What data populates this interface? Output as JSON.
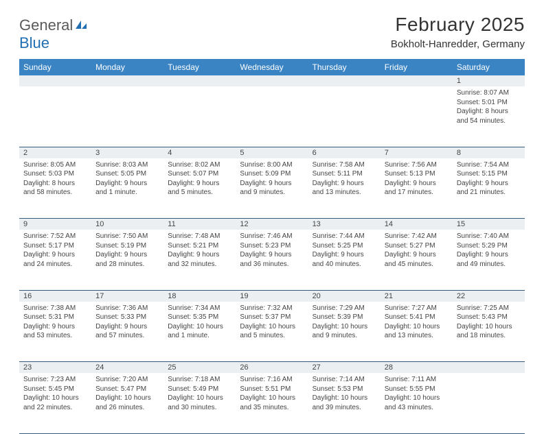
{
  "brand": {
    "part1": "General",
    "part2": "Blue"
  },
  "title": "February 2025",
  "location": "Bokholt-Hanredder, Germany",
  "colors": {
    "header_bg": "#3a84c4",
    "header_text": "#ffffff",
    "daynum_bg": "#eceff1",
    "row_border": "#335a7a",
    "text": "#444444",
    "logo_gray": "#5a5a5a",
    "logo_blue": "#1f6fb2"
  },
  "typography": {
    "title_fontsize": 28,
    "location_fontsize": 15,
    "header_fontsize": 12,
    "daynum_fontsize": 11,
    "content_fontsize": 10
  },
  "layout": {
    "columns": 7,
    "rows": 5
  },
  "day_headers": [
    "Sunday",
    "Monday",
    "Tuesday",
    "Wednesday",
    "Thursday",
    "Friday",
    "Saturday"
  ],
  "weeks": [
    [
      null,
      null,
      null,
      null,
      null,
      null,
      {
        "n": "1",
        "sunrise": "Sunrise: 8:07 AM",
        "sunset": "Sunset: 5:01 PM",
        "daylight": "Daylight: 8 hours and 54 minutes."
      }
    ],
    [
      {
        "n": "2",
        "sunrise": "Sunrise: 8:05 AM",
        "sunset": "Sunset: 5:03 PM",
        "daylight": "Daylight: 8 hours and 58 minutes."
      },
      {
        "n": "3",
        "sunrise": "Sunrise: 8:03 AM",
        "sunset": "Sunset: 5:05 PM",
        "daylight": "Daylight: 9 hours and 1 minute."
      },
      {
        "n": "4",
        "sunrise": "Sunrise: 8:02 AM",
        "sunset": "Sunset: 5:07 PM",
        "daylight": "Daylight: 9 hours and 5 minutes."
      },
      {
        "n": "5",
        "sunrise": "Sunrise: 8:00 AM",
        "sunset": "Sunset: 5:09 PM",
        "daylight": "Daylight: 9 hours and 9 minutes."
      },
      {
        "n": "6",
        "sunrise": "Sunrise: 7:58 AM",
        "sunset": "Sunset: 5:11 PM",
        "daylight": "Daylight: 9 hours and 13 minutes."
      },
      {
        "n": "7",
        "sunrise": "Sunrise: 7:56 AM",
        "sunset": "Sunset: 5:13 PM",
        "daylight": "Daylight: 9 hours and 17 minutes."
      },
      {
        "n": "8",
        "sunrise": "Sunrise: 7:54 AM",
        "sunset": "Sunset: 5:15 PM",
        "daylight": "Daylight: 9 hours and 21 minutes."
      }
    ],
    [
      {
        "n": "9",
        "sunrise": "Sunrise: 7:52 AM",
        "sunset": "Sunset: 5:17 PM",
        "daylight": "Daylight: 9 hours and 24 minutes."
      },
      {
        "n": "10",
        "sunrise": "Sunrise: 7:50 AM",
        "sunset": "Sunset: 5:19 PM",
        "daylight": "Daylight: 9 hours and 28 minutes."
      },
      {
        "n": "11",
        "sunrise": "Sunrise: 7:48 AM",
        "sunset": "Sunset: 5:21 PM",
        "daylight": "Daylight: 9 hours and 32 minutes."
      },
      {
        "n": "12",
        "sunrise": "Sunrise: 7:46 AM",
        "sunset": "Sunset: 5:23 PM",
        "daylight": "Daylight: 9 hours and 36 minutes."
      },
      {
        "n": "13",
        "sunrise": "Sunrise: 7:44 AM",
        "sunset": "Sunset: 5:25 PM",
        "daylight": "Daylight: 9 hours and 40 minutes."
      },
      {
        "n": "14",
        "sunrise": "Sunrise: 7:42 AM",
        "sunset": "Sunset: 5:27 PM",
        "daylight": "Daylight: 9 hours and 45 minutes."
      },
      {
        "n": "15",
        "sunrise": "Sunrise: 7:40 AM",
        "sunset": "Sunset: 5:29 PM",
        "daylight": "Daylight: 9 hours and 49 minutes."
      }
    ],
    [
      {
        "n": "16",
        "sunrise": "Sunrise: 7:38 AM",
        "sunset": "Sunset: 5:31 PM",
        "daylight": "Daylight: 9 hours and 53 minutes."
      },
      {
        "n": "17",
        "sunrise": "Sunrise: 7:36 AM",
        "sunset": "Sunset: 5:33 PM",
        "daylight": "Daylight: 9 hours and 57 minutes."
      },
      {
        "n": "18",
        "sunrise": "Sunrise: 7:34 AM",
        "sunset": "Sunset: 5:35 PM",
        "daylight": "Daylight: 10 hours and 1 minute."
      },
      {
        "n": "19",
        "sunrise": "Sunrise: 7:32 AM",
        "sunset": "Sunset: 5:37 PM",
        "daylight": "Daylight: 10 hours and 5 minutes."
      },
      {
        "n": "20",
        "sunrise": "Sunrise: 7:29 AM",
        "sunset": "Sunset: 5:39 PM",
        "daylight": "Daylight: 10 hours and 9 minutes."
      },
      {
        "n": "21",
        "sunrise": "Sunrise: 7:27 AM",
        "sunset": "Sunset: 5:41 PM",
        "daylight": "Daylight: 10 hours and 13 minutes."
      },
      {
        "n": "22",
        "sunrise": "Sunrise: 7:25 AM",
        "sunset": "Sunset: 5:43 PM",
        "daylight": "Daylight: 10 hours and 18 minutes."
      }
    ],
    [
      {
        "n": "23",
        "sunrise": "Sunrise: 7:23 AM",
        "sunset": "Sunset: 5:45 PM",
        "daylight": "Daylight: 10 hours and 22 minutes."
      },
      {
        "n": "24",
        "sunrise": "Sunrise: 7:20 AM",
        "sunset": "Sunset: 5:47 PM",
        "daylight": "Daylight: 10 hours and 26 minutes."
      },
      {
        "n": "25",
        "sunrise": "Sunrise: 7:18 AM",
        "sunset": "Sunset: 5:49 PM",
        "daylight": "Daylight: 10 hours and 30 minutes."
      },
      {
        "n": "26",
        "sunrise": "Sunrise: 7:16 AM",
        "sunset": "Sunset: 5:51 PM",
        "daylight": "Daylight: 10 hours and 35 minutes."
      },
      {
        "n": "27",
        "sunrise": "Sunrise: 7:14 AM",
        "sunset": "Sunset: 5:53 PM",
        "daylight": "Daylight: 10 hours and 39 minutes."
      },
      {
        "n": "28",
        "sunrise": "Sunrise: 7:11 AM",
        "sunset": "Sunset: 5:55 PM",
        "daylight": "Daylight: 10 hours and 43 minutes."
      },
      null
    ]
  ]
}
